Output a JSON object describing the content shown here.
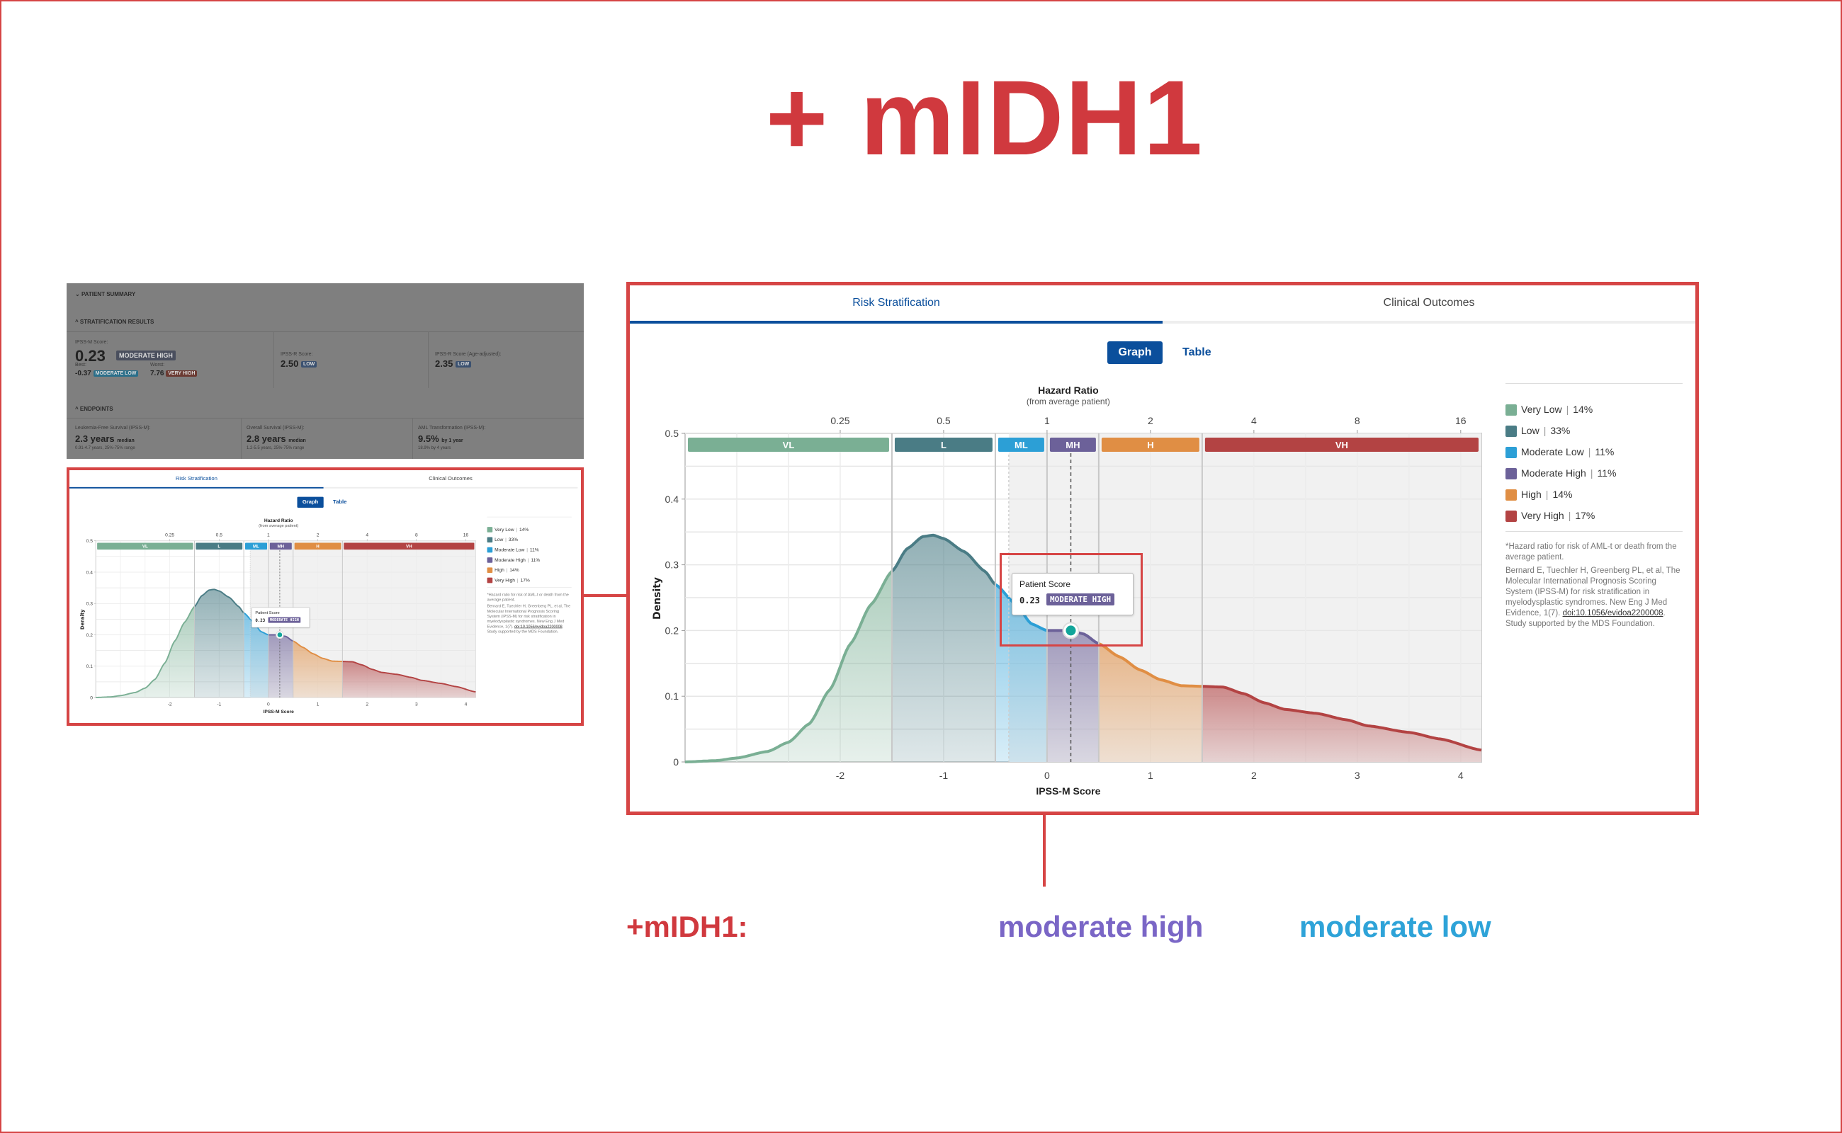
{
  "title": "+ mIDH1",
  "summary": {
    "patient_summary": "PATIENT SUMMARY",
    "stratification_results": "STRATIFICATION RESULTS",
    "ipssm_label": "IPSS-M Score:",
    "ipssm_value": "0.23",
    "ipssm_category": "MODERATE HIGH",
    "best_label": "Best:",
    "best_value": "-0.37",
    "best_category": "MODERATE LOW",
    "worst_label": "Worst:",
    "worst_value": "7.76",
    "worst_category": "VERY HIGH",
    "ipssr_label": "IPSS-R Score:",
    "ipssr_value": "2.50",
    "ipssr_category": "LOW",
    "ipssr_age_label": "IPSS-R Score (Age-adjusted):",
    "ipssr_age_value": "2.35",
    "ipssr_age_category": "LOW",
    "endpoints": "ENDPOINTS",
    "lfs_label": "Leukemia-Free Survival (IPSS-M):",
    "lfs_value": "2.3 years",
    "lfs_unit": "median",
    "lfs_range": "0.91-4.7 years, 25%-75% range",
    "os_label": "Overall Survival (IPSS-M):",
    "os_value": "2.8 years",
    "os_unit": "median",
    "os_range": "1.2-5.5 years, 25%-75% range",
    "aml_label": "AML Transformation (IPSS-M):",
    "aml_value": "9.5%",
    "aml_unit": "by 1 year",
    "aml_range": "18.9% by 4 years"
  },
  "tabs": [
    {
      "label": "Risk Stratification",
      "active": true
    },
    {
      "label": "Clinical Outcomes",
      "active": false
    }
  ],
  "view_toggle": {
    "graph": "Graph",
    "table": "Table",
    "selected": "Graph"
  },
  "chart_data": {
    "type": "area",
    "xlabel": "IPSS-M Score",
    "ylabel": "Density",
    "top_axis_title": "Hazard Ratio",
    "top_axis_subtitle": "(from average patient)",
    "xlim": [
      -3.5,
      4.2
    ],
    "ylim": [
      0,
      0.5
    ],
    "x_ticks": [
      "-2",
      "-1",
      "0",
      "1",
      "2",
      "3",
      "4"
    ],
    "x_tick_values": [
      -2,
      -1,
      0,
      1,
      2,
      3,
      4
    ],
    "top_ticks": [
      "0.25",
      "0.5",
      "1",
      "2",
      "4",
      "8",
      "16"
    ],
    "y_ticks": [
      "0",
      "0.1",
      "0.2",
      "0.3",
      "0.4",
      "0.5"
    ],
    "grid": true,
    "bands": [
      {
        "code": "VL",
        "name": "Very Low",
        "pct": "14%",
        "from": -3.5,
        "to": -1.5,
        "color": "#7aaf94"
      },
      {
        "code": "L",
        "name": "Low",
        "pct": "33%",
        "from": -1.5,
        "to": -0.5,
        "color": "#4a7c85"
      },
      {
        "code": "ML",
        "name": "Moderate Low",
        "pct": "11%",
        "from": -0.5,
        "to": 0,
        "color": "#2c9fd6"
      },
      {
        "code": "MH",
        "name": "Moderate High",
        "pct": "11%",
        "from": 0,
        "to": 0.5,
        "color": "#6c6199"
      },
      {
        "code": "H",
        "name": "High",
        "pct": "14%",
        "from": 0.5,
        "to": 1.5,
        "color": "#e08e44"
      },
      {
        "code": "VH",
        "name": "Very High",
        "pct": "17%",
        "from": 1.5,
        "to": 4.2,
        "color": "#b34343"
      }
    ],
    "curve": {
      "x": [
        -3.5,
        -3.2,
        -3.0,
        -2.7,
        -2.5,
        -2.3,
        -2.1,
        -1.9,
        -1.7,
        -1.5,
        -1.35,
        -1.2,
        -1.1,
        -1.0,
        -0.8,
        -0.6,
        -0.5,
        -0.3,
        -0.15,
        0.0,
        0.23,
        0.35,
        0.5,
        0.7,
        0.9,
        1.1,
        1.3,
        1.5,
        1.7,
        1.9,
        2.1,
        2.3,
        2.6,
        2.9,
        3.1,
        3.5,
        3.8,
        4.2
      ],
      "y": [
        0.0,
        0.002,
        0.006,
        0.016,
        0.03,
        0.058,
        0.11,
        0.18,
        0.24,
        0.29,
        0.325,
        0.343,
        0.345,
        0.34,
        0.32,
        0.29,
        0.27,
        0.24,
        0.21,
        0.2,
        0.2,
        0.195,
        0.18,
        0.16,
        0.14,
        0.125,
        0.116,
        0.115,
        0.114,
        0.104,
        0.09,
        0.08,
        0.074,
        0.064,
        0.055,
        0.045,
        0.035,
        0.018
      ]
    },
    "patient": {
      "label": "Patient Score",
      "score": 0.23,
      "score_text": "0.23",
      "category": "MODERATE HIGH",
      "best": -0.37
    }
  },
  "footnote": "*Hazard ratio for risk of AML-t or death from the average patient.",
  "citation": "Bernard E, Tuechler H, Greenberg PL, et al, The Molecular International Prognosis Scoring System (IPSS-M) for risk stratification in myelodysplastic syndromes. New Eng J Med Evidence, 1(7).",
  "citation_link": "doi:10.1056/evidoa2200008",
  "citation_after": ". Study supported by the MDS Foundation.",
  "annotations": {
    "label": "+mIDH1:",
    "from_category": "moderate high",
    "to_category": "moderate low",
    "colors": {
      "label": "#d0393e",
      "from": "#7a66c6",
      "to": "#2ea3d8"
    }
  }
}
